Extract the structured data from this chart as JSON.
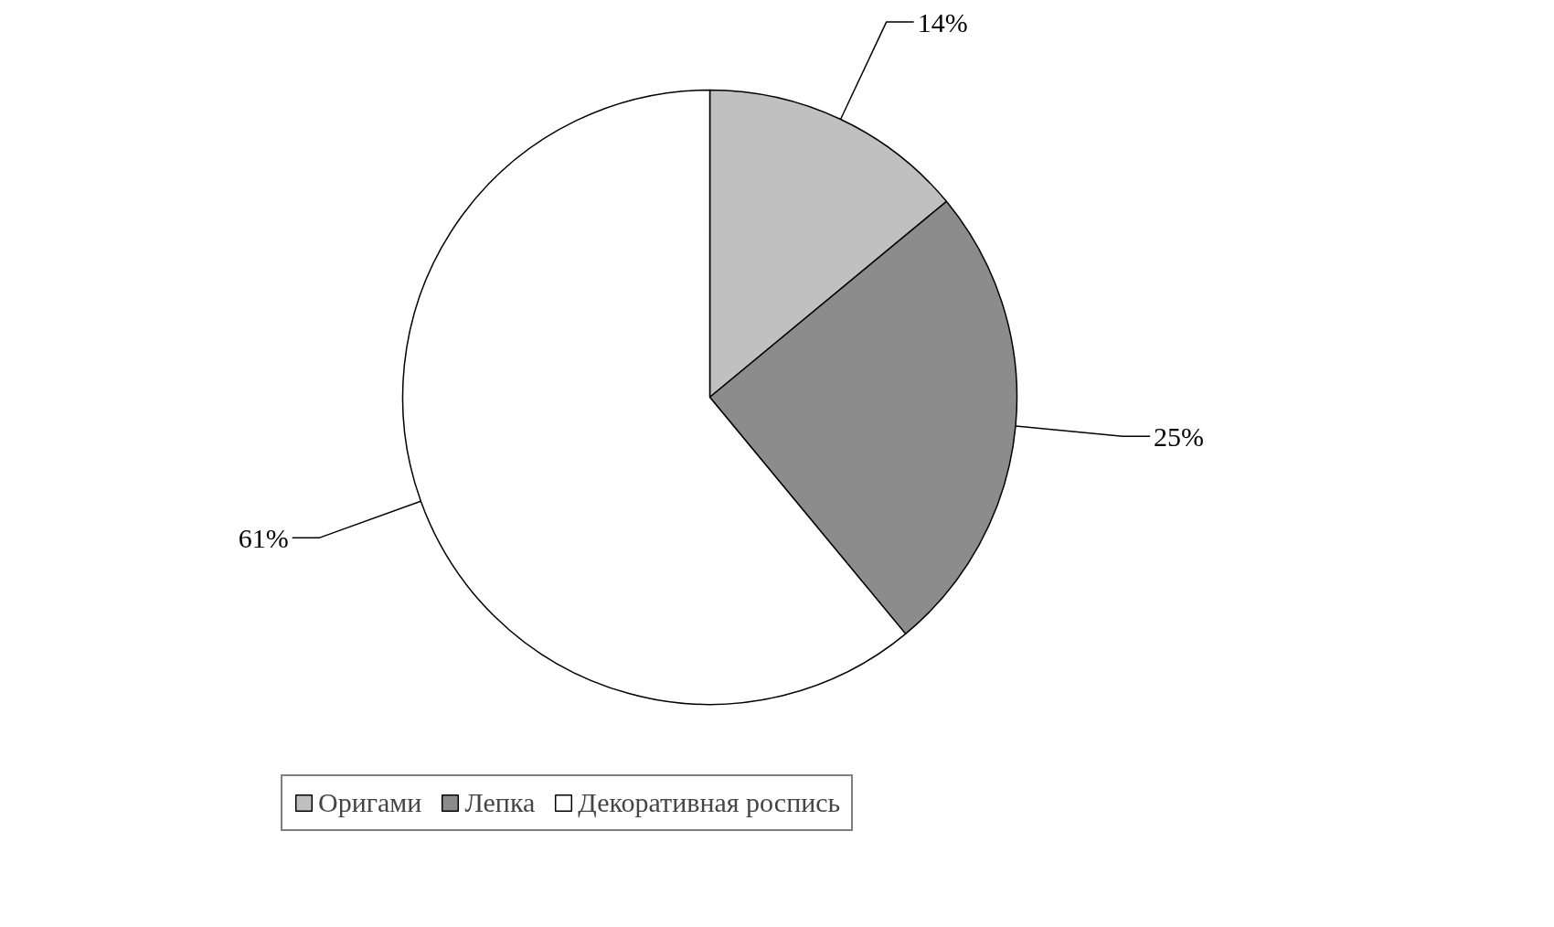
{
  "chart_data": {
    "type": "pie",
    "categories": [
      "Оригами",
      "Лепка",
      "Декоративная роспись"
    ],
    "values": [
      14,
      25,
      61
    ],
    "colors": [
      "#c0c0c0",
      "#8c8c8c",
      "#ffffff"
    ],
    "value_labels": [
      "14%",
      "25%",
      "61%"
    ],
    "legend": "bottom"
  }
}
